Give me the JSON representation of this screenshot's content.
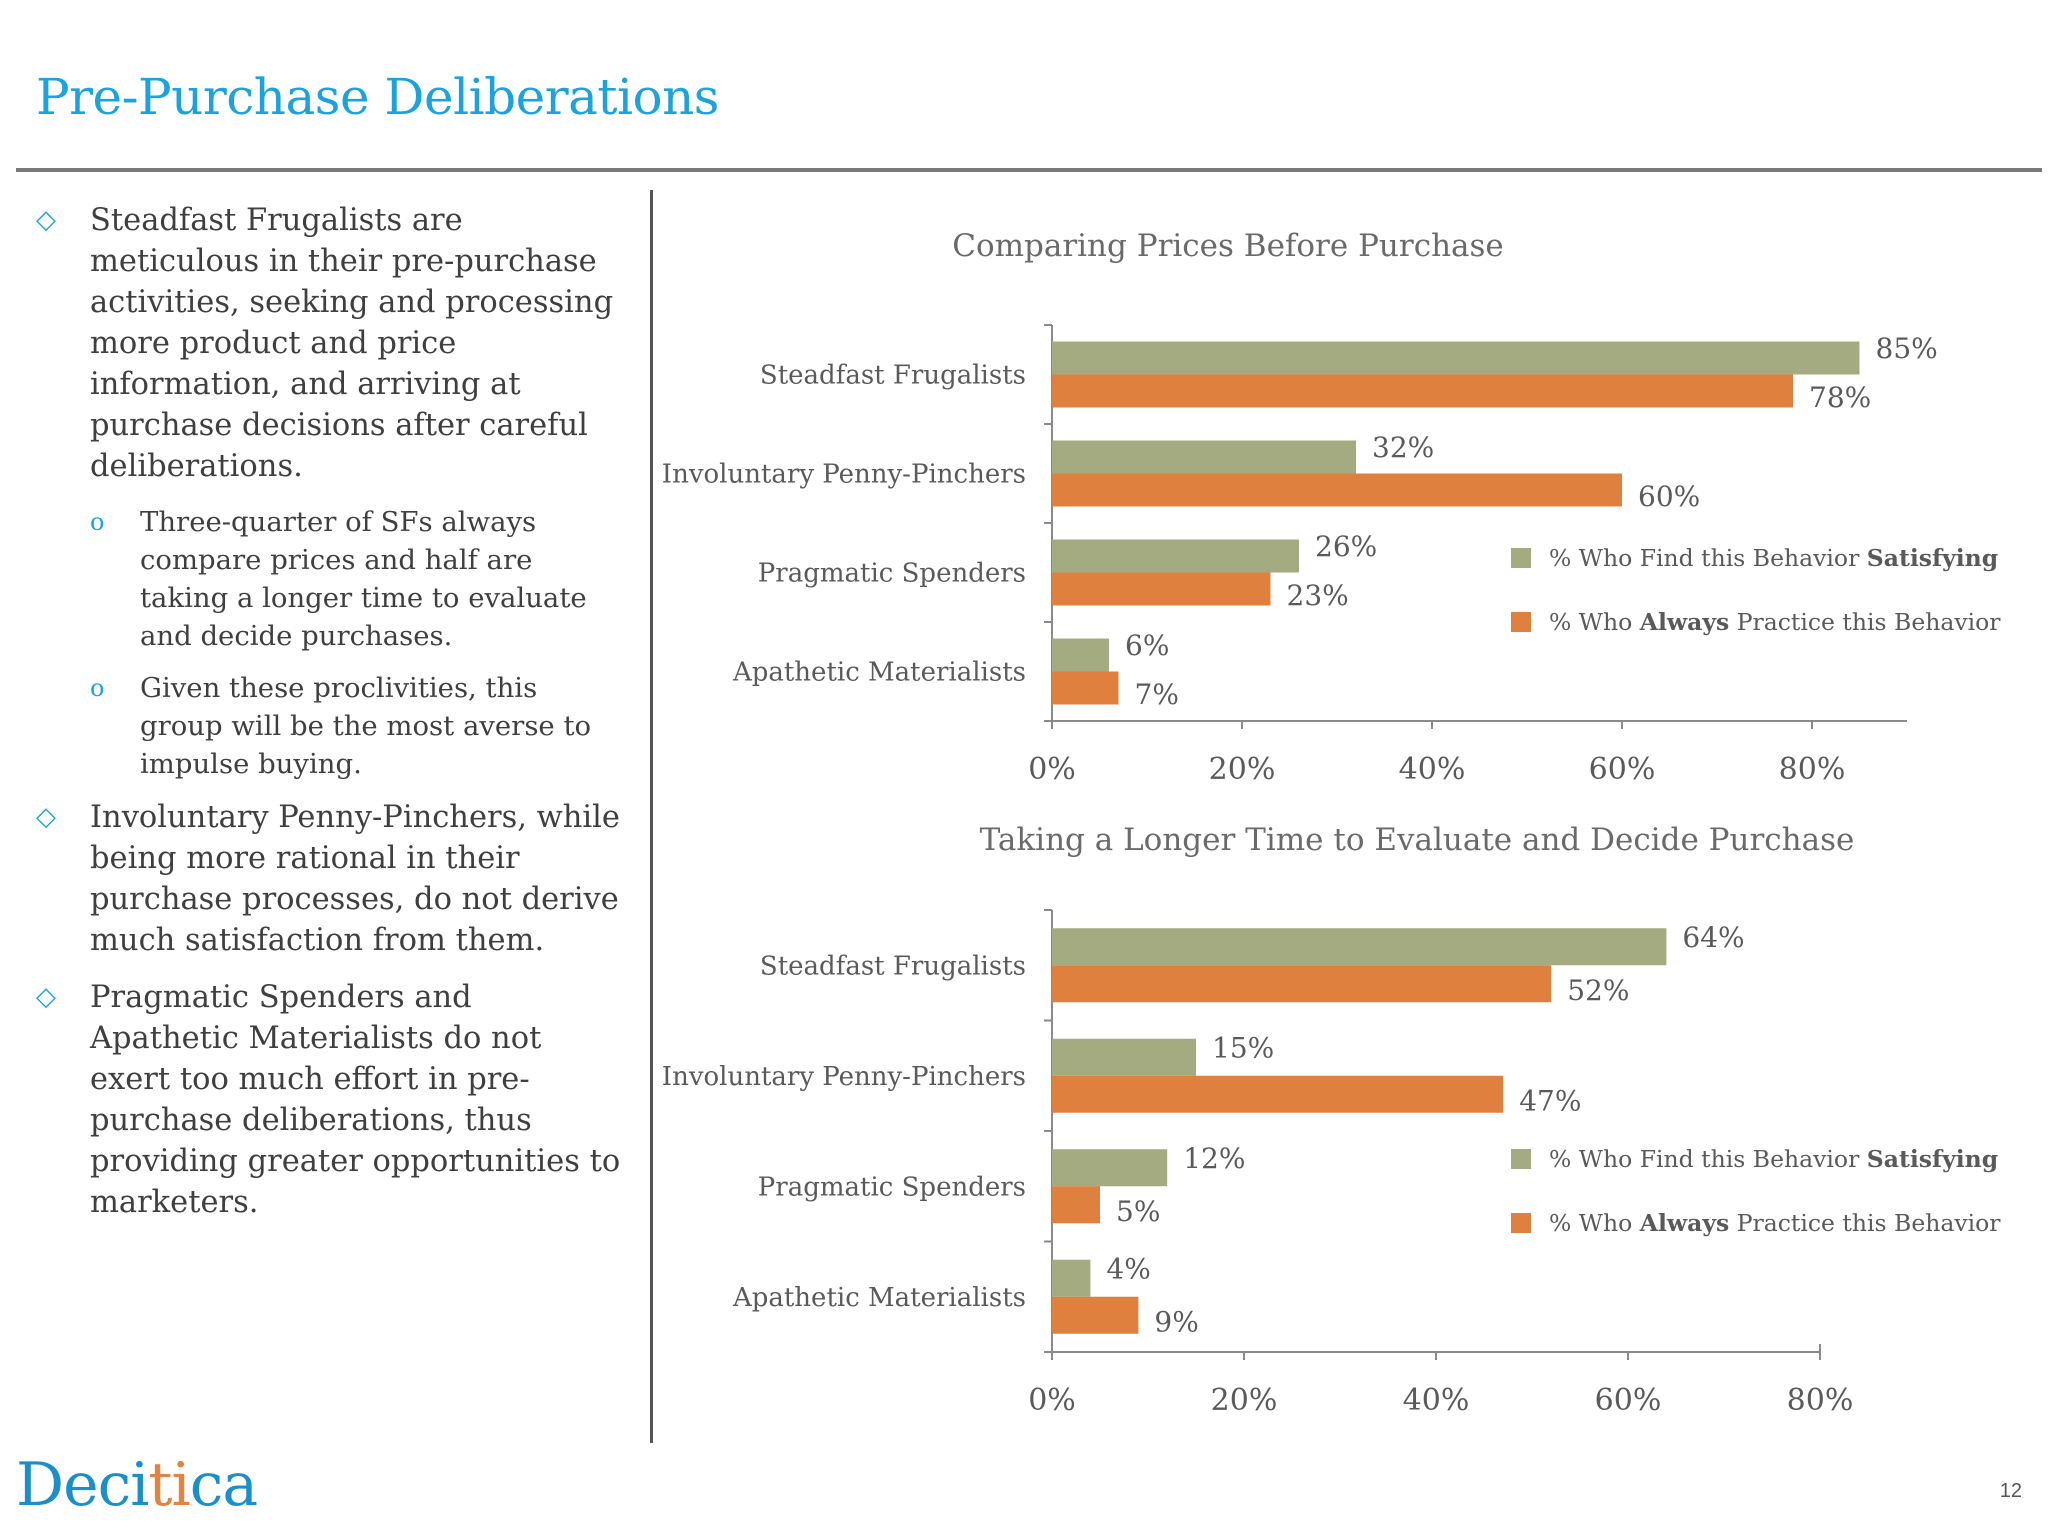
{
  "title": "Pre-Purchase Deliberations",
  "bullets": [
    {
      "text": "Steadfast  Frugalists are meticulous in their pre-purchase activities, seeking and processing more product and price information, and arriving at purchase decisions after careful deliberations.",
      "sub": [
        "Three-quarter of SFs always compare prices and half are taking a longer time to evaluate and decide purchases.",
        "Given these proclivities, this group will be the most averse to impulse buying."
      ]
    },
    {
      "text": "Involuntary Penny-Pinchers, while being more rational in their purchase processes, do not derive much satisfaction from them."
    },
    {
      "text": "Pragmatic Spenders and Apathetic Materialists do not exert too much effort in pre-purchase deliberations, thus providing greater opportunities to marketers."
    }
  ],
  "markers": {
    "main": "◇",
    "sub": "o"
  },
  "legend": {
    "satisfying": {
      "prefix": "% Who Find this Behavior ",
      "bold": "Satisfying",
      "suffix": ""
    },
    "always": {
      "prefix": "% Who ",
      "bold": "Always",
      "suffix": " Practice this Behavior"
    }
  },
  "colors": {
    "satisfying": "#a4ab80",
    "always": "#e0803f",
    "title": "#1aa3de"
  },
  "chart_data": [
    {
      "type": "bar",
      "orientation": "horizontal",
      "title": "Comparing Prices Before Purchase",
      "categories": [
        "Steadfast Frugalists",
        "Involuntary Penny-Pinchers",
        "Pragmatic Spenders",
        "Apathetic Materialists"
      ],
      "series": [
        {
          "name": "% Who Find this Behavior Satisfying",
          "values": [
            85,
            32,
            26,
            6
          ]
        },
        {
          "name": "% Who Always Practice this Behavior",
          "values": [
            78,
            60,
            23,
            7
          ]
        }
      ],
      "xlim": [
        0,
        90
      ],
      "xticks": [
        0,
        20,
        40,
        60,
        80
      ],
      "tick_labels": [
        "0%",
        "20%",
        "40%",
        "60%",
        "80%"
      ],
      "legend_position": "right"
    },
    {
      "type": "bar",
      "orientation": "horizontal",
      "title": "Taking a Longer Time to Evaluate and Decide Purchase",
      "categories": [
        "Steadfast Frugalists",
        "Involuntary Penny-Pinchers",
        "Pragmatic Spenders",
        "Apathetic Materialists"
      ],
      "series": [
        {
          "name": "% Who Find this Behavior Satisfying",
          "values": [
            64,
            15,
            12,
            4
          ]
        },
        {
          "name": "% Who Always Practice this Behavior",
          "values": [
            52,
            47,
            5,
            9
          ]
        }
      ],
      "xlim": [
        0,
        80
      ],
      "xticks": [
        0,
        20,
        40,
        60,
        80
      ],
      "tick_labels": [
        "0%",
        "20%",
        "40%",
        "60%",
        "80%"
      ],
      "legend_position": "right"
    }
  ],
  "logo": {
    "part1": "Deci",
    "part2": "ti",
    "part3": "ca"
  },
  "page_number": "12"
}
